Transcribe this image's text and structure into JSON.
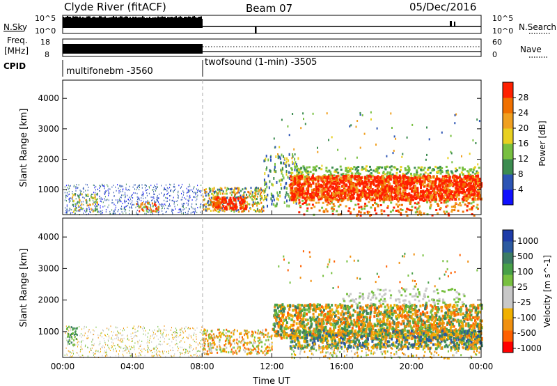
{
  "header": {
    "station": "Clyde River (fitACF)",
    "beam": "Beam 07",
    "date": "05/Dec/2016"
  },
  "panels": {
    "nsky": {
      "label": "N.Sky",
      "top_tick": "10^5",
      "bottom_tick": "10^0",
      "right_top_tick": "10^5",
      "right_bottom_tick": "10^0",
      "right_label": "N.Search"
    },
    "freq": {
      "label_line1": "Freq.",
      "label_line2": "[MHz]",
      "top_tick": "18",
      "bottom_tick": "8",
      "right_top_tick": "60",
      "right_bottom_tick": "0",
      "right_label": "Nave"
    },
    "cpid": {
      "label": "CPID",
      "mode1": "multifonebm -3560",
      "mode2": "twofsound (1-min) -3505"
    }
  },
  "colors": {
    "power_scale": [
      "#1010ff",
      "#2c54b4",
      "#3c8c50",
      "#78c040",
      "#e8d020",
      "#f0a020",
      "#f07000",
      "#ff2000"
    ],
    "velocity_scale": [
      "#ff0000",
      "#ff6000",
      "#f09010",
      "#f0b000",
      "#c8c8c8",
      "#c8c8c8",
      "#78c040",
      "#48a048",
      "#3c7c64",
      "#2c5aa0",
      "#1e3ca8"
    ]
  },
  "chart_data": [
    {
      "type": "heatmap",
      "name": "Power",
      "ylabel": "Slant Range [km]",
      "yticks": [
        1000,
        2000,
        3000,
        4000
      ],
      "ylim": [
        180,
        4600
      ],
      "colorbar": {
        "label": "Power [dB]",
        "ticks": [
          "4",
          "8",
          "12",
          "16",
          "20",
          "24",
          "28"
        ],
        "range": [
          0,
          32
        ]
      },
      "x_start": "00:00",
      "x_end": "00:00 (next day)",
      "x_range_hours": [
        0,
        24
      ],
      "mode_change_hour": 8
    },
    {
      "type": "heatmap",
      "name": "Velocity",
      "ylabel": "Slant Range [km]",
      "yticks": [
        1000,
        2000,
        3000,
        4000
      ],
      "ylim": [
        180,
        4600
      ],
      "xlabel": "Time UT",
      "xticks": [
        "00:00",
        "04:00",
        "08:00",
        "12:00",
        "16:00",
        "20:00",
        "00:00"
      ],
      "colorbar": {
        "label": "Velocity [m s^-1]",
        "ticks": [
          "-1000",
          "-500",
          "-100",
          "-25",
          "25",
          "100",
          "500",
          "1000"
        ]
      },
      "x_range_hours": [
        0,
        24
      ],
      "mode_change_hour": 8
    }
  ]
}
